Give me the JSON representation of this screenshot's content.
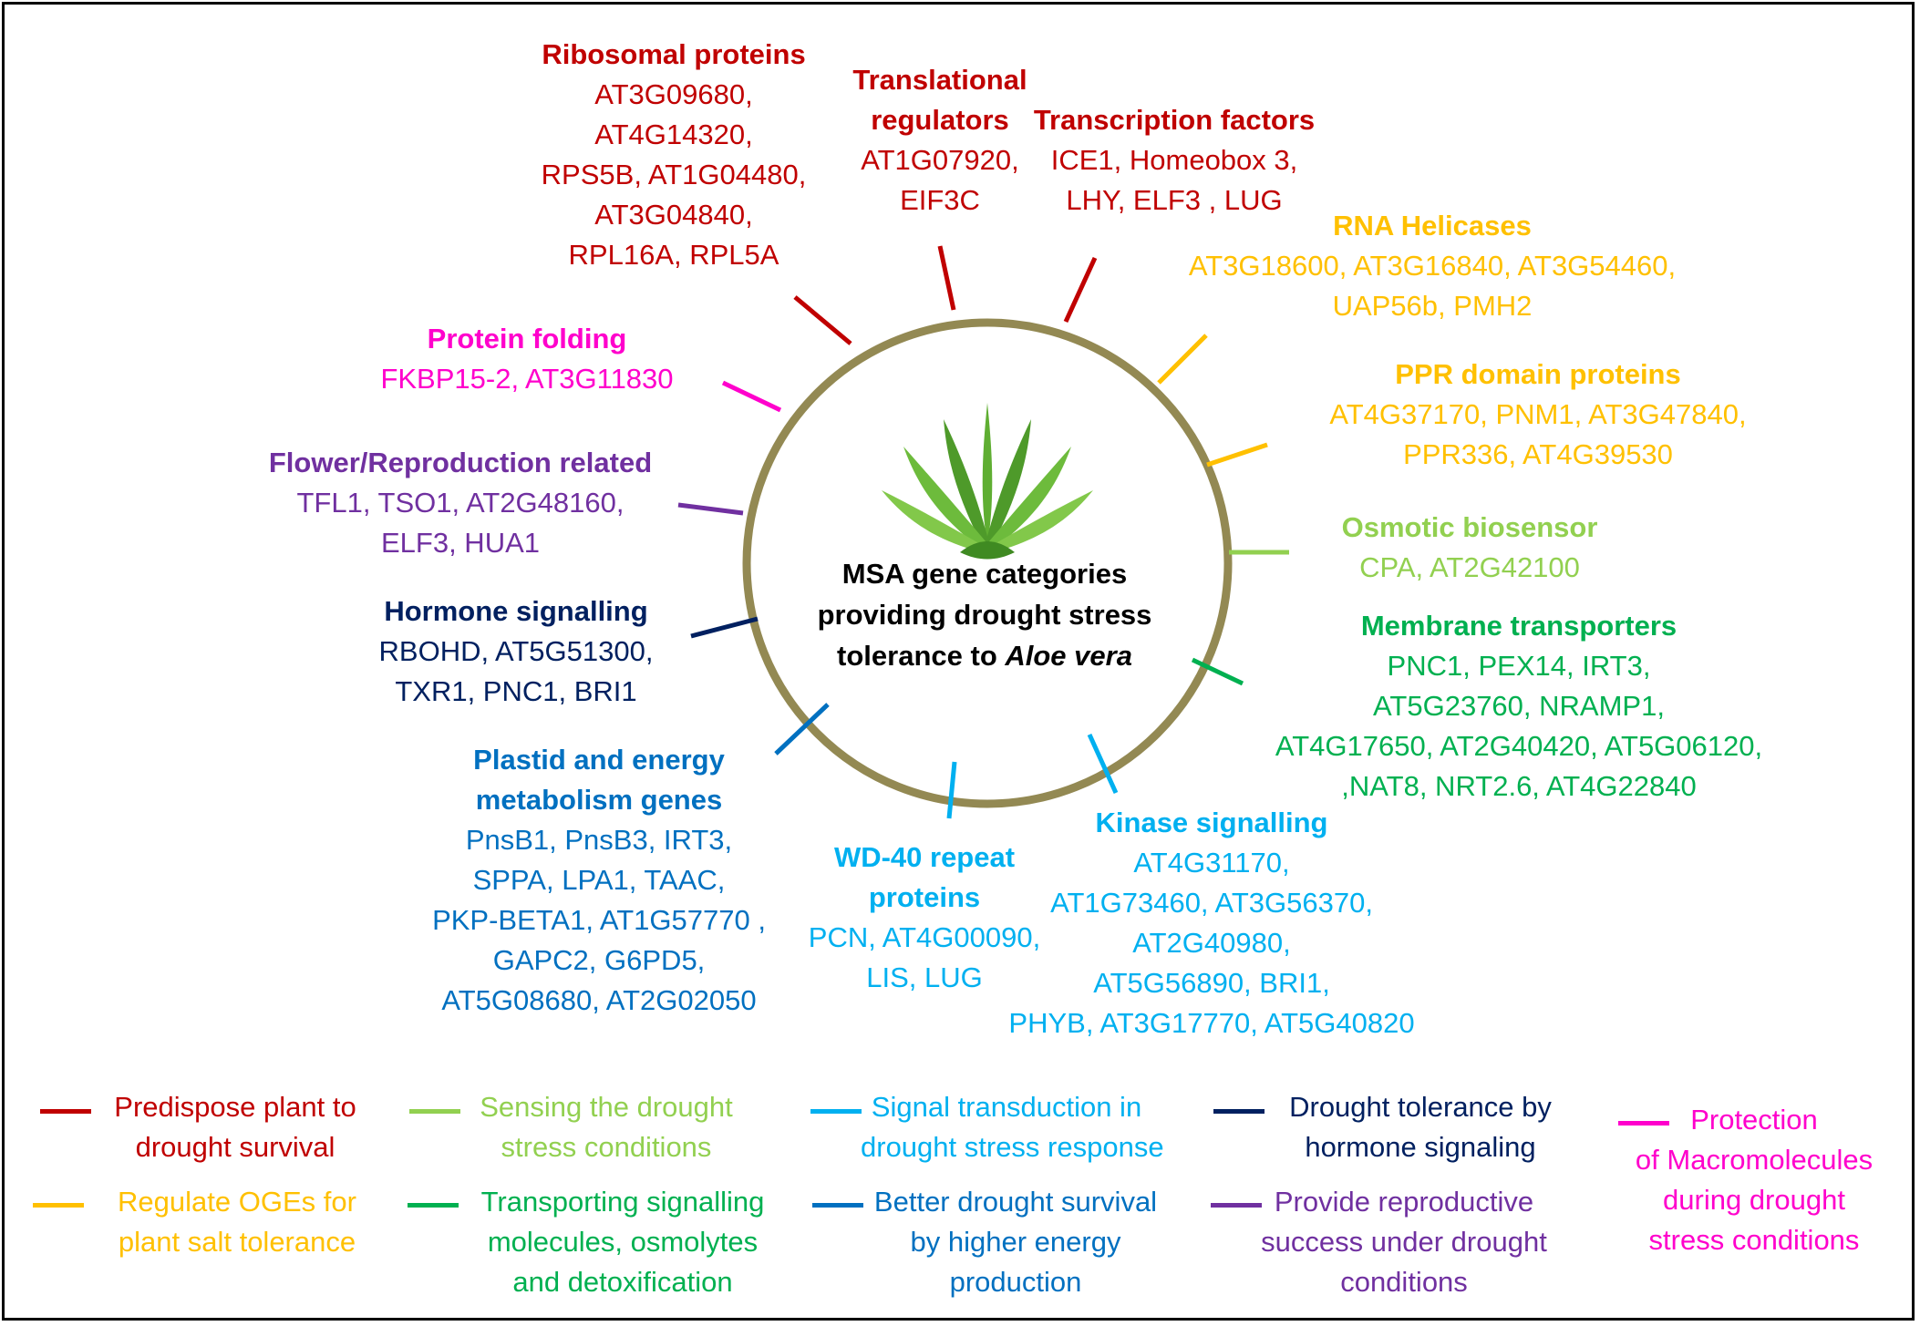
{
  "colors": {
    "red": "#c00000",
    "magenta": "#ff00cc",
    "purple": "#7030a0",
    "navy": "#002060",
    "blue": "#0070c0",
    "skyblue": "#00b0f0",
    "teal": "#00b050",
    "lightgreen": "#92d050",
    "gold": "#ffc000",
    "hub_ring": "#938953"
  },
  "hub": {
    "title_lines": [
      "MSA gene categories",
      "providing drought stress",
      "tolerance to "
    ],
    "title_italic": "Aloe vera",
    "icon": "aloe-vera-plant-icon"
  },
  "categories": [
    {
      "id": "ribosomal",
      "color": "red",
      "title": [
        "Ribosomal proteins"
      ],
      "genes": [
        "AT3G09680,",
        "AT4G14320,",
        "RPS5B, AT1G04480,",
        "AT3G04840,",
        "RPL16A, RPL5A"
      ]
    },
    {
      "id": "translational",
      "color": "red",
      "title": [
        "Translational",
        "regulators"
      ],
      "genes": [
        "AT1G07920,",
        "EIF3C"
      ]
    },
    {
      "id": "transcription",
      "color": "red",
      "title": [
        "Transcription factors"
      ],
      "genes": [
        "ICE1, Homeobox 3,",
        "LHY, ELF3 , LUG"
      ]
    },
    {
      "id": "rna-helicases",
      "color": "gold",
      "title": [
        "RNA Helicases"
      ],
      "genes": [
        "AT3G18600, AT3G16840, AT3G54460,",
        "UAP56b, PMH2"
      ]
    },
    {
      "id": "ppr",
      "color": "gold",
      "title": [
        "PPR domain proteins"
      ],
      "genes": [
        "AT4G37170, PNM1, AT3G47840,",
        "PPR336, AT4G39530"
      ]
    },
    {
      "id": "osmotic",
      "color": "lightgreen",
      "title": [
        "Osmotic biosensor"
      ],
      "genes": [
        "CPA, AT2G42100"
      ]
    },
    {
      "id": "membrane",
      "color": "teal",
      "title": [
        "Membrane transporters"
      ],
      "genes": [
        "PNC1, PEX14, IRT3,",
        "AT5G23760, NRAMP1,",
        "AT4G17650, AT2G40420, AT5G06120,",
        ",NAT8, NRT2.6, AT4G22840"
      ]
    },
    {
      "id": "kinase",
      "color": "skyblue",
      "title": [
        "Kinase signalling"
      ],
      "genes": [
        "AT4G31170,",
        "AT1G73460, AT3G56370,",
        "AT2G40980,",
        "AT5G56890, BRI1,",
        "PHYB, AT3G17770, AT5G40820"
      ]
    },
    {
      "id": "wd40",
      "color": "skyblue",
      "title": [
        "WD-40 repeat",
        "proteins"
      ],
      "genes": [
        "PCN, AT4G00090,",
        "LIS, LUG"
      ]
    },
    {
      "id": "plastid",
      "color": "blue",
      "title": [
        "Plastid and energy",
        "metabolism genes"
      ],
      "genes": [
        "PnsB1, PnsB3, IRT3,",
        "SPPA, LPA1, TAAC,",
        "PKP-BETA1, AT1G57770 ,",
        "GAPC2, G6PD5,",
        "AT5G08680, AT2G02050"
      ]
    },
    {
      "id": "hormone",
      "color": "navy",
      "title": [
        "Hormone signalling"
      ],
      "genes": [
        "RBOHD, AT5G51300,",
        "TXR1, PNC1, BRI1"
      ]
    },
    {
      "id": "flower",
      "color": "purple",
      "title": [
        "Flower/Reproduction related"
      ],
      "genes": [
        "TFL1, TSO1, AT2G48160,",
        "ELF3, HUA1"
      ]
    },
    {
      "id": "protein-folding",
      "color": "magenta",
      "title": [
        "Protein folding"
      ],
      "genes": [
        "FKBP15-2, AT3G11830"
      ]
    }
  ],
  "legend": [
    {
      "id": "predispose",
      "color": "red",
      "lines": [
        "Predispose plant to",
        "drought survival"
      ]
    },
    {
      "id": "sensing",
      "color": "lightgreen",
      "lines": [
        "Sensing the drought",
        "stress conditions"
      ]
    },
    {
      "id": "signal",
      "color": "skyblue",
      "lines": [
        "Signal transduction in",
        "drought stress response"
      ]
    },
    {
      "id": "hormone-tol",
      "color": "navy",
      "lines": [
        "Drought tolerance by",
        "hormone signaling"
      ]
    },
    {
      "id": "protection",
      "color": "magenta",
      "lines": [
        "Protection",
        "of Macromolecules",
        "during drought",
        "stress conditions"
      ]
    },
    {
      "id": "regulate",
      "color": "gold",
      "lines": [
        "Regulate OGEs for",
        "plant salt tolerance"
      ]
    },
    {
      "id": "transporting",
      "color": "teal",
      "lines": [
        "Transporting signalling",
        "molecules, osmolytes",
        "and detoxification"
      ]
    },
    {
      "id": "energy",
      "color": "blue",
      "lines": [
        "Better drought survival",
        "by higher energy",
        "production"
      ]
    },
    {
      "id": "reproductive",
      "color": "purple",
      "lines": [
        "Provide reproductive",
        "success under drought",
        "conditions"
      ]
    }
  ]
}
